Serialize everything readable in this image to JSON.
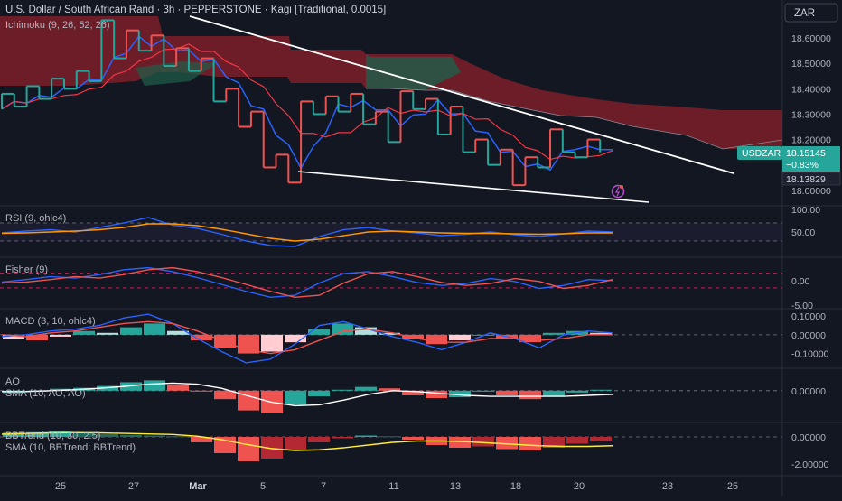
{
  "header": {
    "title": "U.S. Dollar / South African Rand · 3h · PEPPERSTONE · Kagi [Traditional, 0.0015]",
    "currency_button": "ZAR"
  },
  "colors": {
    "bg": "#131722",
    "up": "#26a69a",
    "down": "#ef5350",
    "blue": "#2962ff",
    "red_line": "#f23645",
    "orange": "#ff9800",
    "yellow": "#ffeb3b",
    "white": "#ffffff",
    "grid": "#2a2e39",
    "text": "#b2b5be"
  },
  "time_axis": {
    "labels": [
      "25",
      "27",
      "Mar",
      "5",
      "7",
      "11",
      "13",
      "18",
      "20",
      "23",
      "25"
    ]
  },
  "price_badge": {
    "symbol": "USDZAR",
    "price": "18.15145",
    "change": "−0.83%",
    "low_tag": "18.13829"
  },
  "chart_data": [
    {
      "type": "line",
      "name": "Kagi price",
      "legend": "Ichimoku (9, 26, 52, 26)",
      "yticks": [
        "18.60000",
        "18.50000",
        "18.40000",
        "18.30000",
        "18.20000",
        "18.00000"
      ],
      "ylim": [
        17.96,
        18.7
      ],
      "kagi": [
        18.32,
        18.38,
        18.33,
        18.41,
        18.36,
        18.44,
        18.4,
        18.47,
        18.43,
        18.67,
        18.52,
        18.63,
        18.55,
        18.61,
        18.49,
        18.56,
        18.47,
        18.52,
        18.35,
        18.4,
        18.25,
        18.31,
        18.09,
        18.14,
        18.03,
        18.35,
        18.3,
        18.37,
        18.31,
        18.38,
        18.26,
        18.31,
        18.19,
        18.39,
        18.32,
        18.36,
        18.22,
        18.33,
        18.15,
        18.2,
        18.1,
        18.16,
        18.02,
        18.13,
        18.09,
        18.24,
        18.15,
        18.13,
        18.2,
        18.15
      ]
    },
    {
      "type": "line",
      "name": "RSI",
      "legend": "RSI (9, ohlc4)",
      "yticks": [
        "100.00",
        "50.00"
      ],
      "ylim": [
        0,
        100
      ],
      "series": [
        {
          "name": "RSI",
          "values": [
            48,
            52,
            55,
            50,
            60,
            70,
            82,
            65,
            58,
            45,
            30,
            20,
            18,
            40,
            55,
            60,
            52,
            48,
            42,
            45,
            50,
            44,
            40,
            46,
            52,
            50
          ]
        },
        {
          "name": "RSI-based MA",
          "values": [
            47,
            48,
            50,
            52,
            55,
            60,
            68,
            68,
            64,
            56,
            46,
            36,
            30,
            34,
            42,
            50,
            52,
            50,
            48,
            47,
            47,
            46,
            45,
            46,
            48,
            48
          ]
        }
      ]
    },
    {
      "type": "line",
      "name": "Fisher",
      "legend": "Fisher (9)",
      "yticks": [
        "0.00",
        "-5.00"
      ],
      "ylim": [
        -5,
        4
      ],
      "series": [
        {
          "name": "Fisher",
          "values": [
            -0.3,
            0.2,
            0.8,
            0.5,
            1.2,
            2.2,
            2.6,
            1.8,
            0.6,
            -0.8,
            -2.2,
            -3.4,
            -3.0,
            -0.5,
            1.4,
            1.8,
            0.8,
            -0.4,
            -1.0,
            -0.6,
            0.4,
            -0.2,
            -1.6,
            -1.0,
            0.2,
            0.0
          ]
        },
        {
          "name": "Trigger",
          "values": [
            -0.5,
            -0.3,
            0.2,
            0.8,
            0.5,
            1.2,
            2.2,
            2.6,
            1.8,
            0.6,
            -0.8,
            -2.2,
            -3.4,
            -3.0,
            -0.5,
            1.4,
            1.8,
            0.8,
            -0.4,
            -1.0,
            -0.6,
            0.4,
            -0.2,
            -1.6,
            -1.0,
            0.2
          ]
        }
      ]
    },
    {
      "type": "bar",
      "name": "MACD",
      "legend": "MACD (3, 10, ohlc4)",
      "yticks": [
        "0.10000",
        "0.00000",
        "-0.10000"
      ],
      "ylim": [
        -0.16,
        0.12
      ],
      "histogram": [
        -0.02,
        -0.03,
        -0.01,
        0.02,
        0.01,
        0.04,
        0.06,
        0.02,
        -0.03,
        -0.07,
        -0.1,
        -0.09,
        -0.04,
        0.03,
        0.06,
        0.04,
        0.01,
        -0.02,
        -0.05,
        -0.03,
        0.0,
        -0.02,
        -0.04,
        0.01,
        0.02,
        0.01
      ],
      "series": [
        {
          "name": "MACD",
          "values": [
            -0.01,
            0.0,
            0.02,
            0.03,
            0.05,
            0.09,
            0.11,
            0.06,
            -0.02,
            -0.09,
            -0.15,
            -0.13,
            -0.05,
            0.05,
            0.07,
            0.03,
            -0.01,
            -0.04,
            -0.08,
            -0.04,
            0.01,
            -0.02,
            -0.07,
            0.0,
            0.02,
            0.01
          ]
        },
        {
          "name": "Signal",
          "values": [
            0.0,
            -0.01,
            0.01,
            0.02,
            0.04,
            0.06,
            0.07,
            0.06,
            0.02,
            -0.03,
            -0.08,
            -0.1,
            -0.08,
            -0.03,
            0.02,
            0.03,
            0.01,
            -0.02,
            -0.04,
            -0.04,
            -0.02,
            -0.02,
            -0.03,
            -0.02,
            0.0,
            0.0
          ]
        }
      ]
    },
    {
      "type": "bar",
      "name": "AO",
      "legend": "AO",
      "legend2": "SMA (10, AO, AO)",
      "yticks": [
        "0.00000"
      ],
      "ylim": [
        -0.6,
        0.4
      ],
      "histogram": [
        -0.05,
        -0.02,
        0.04,
        0.06,
        0.1,
        0.18,
        0.22,
        0.12,
        0.0,
        -0.18,
        -0.42,
        -0.48,
        -0.3,
        -0.12,
        0.02,
        0.08,
        0.05,
        -0.1,
        -0.16,
        -0.14,
        -0.02,
        -0.1,
        -0.18,
        -0.12,
        -0.04,
        0.02
      ],
      "series": [
        {
          "name": "SMA",
          "values": [
            -0.02,
            -0.02,
            0.0,
            0.02,
            0.05,
            0.09,
            0.14,
            0.16,
            0.14,
            0.05,
            -0.1,
            -0.24,
            -0.32,
            -0.3,
            -0.2,
            -0.08,
            0.0,
            -0.02,
            -0.06,
            -0.1,
            -0.12,
            -0.12,
            -0.12,
            -0.12,
            -0.1,
            -0.08
          ]
        }
      ]
    },
    {
      "type": "bar",
      "name": "BBTrend",
      "legend": "BBTrend (10, 30, 2.5)",
      "legend2": "SMA (10, BBTrend: BBTrend)",
      "yticks": [
        "0.00000",
        "-2.00000"
      ],
      "ylim": [
        -2.6,
        0.8
      ],
      "histogram": [
        0.3,
        0.35,
        0.4,
        0.3,
        0.2,
        0.15,
        0.1,
        0.05,
        -0.4,
        -1.2,
        -1.8,
        -1.6,
        -1.0,
        -0.4,
        -0.1,
        0.1,
        0.05,
        -0.2,
        -0.6,
        -0.8,
        -0.7,
        -0.9,
        -1.0,
        -0.8,
        -0.5,
        -0.3
      ],
      "series": [
        {
          "name": "SMA",
          "values": [
            0.2,
            0.25,
            0.3,
            0.32,
            0.3,
            0.26,
            0.22,
            0.18,
            0.05,
            -0.2,
            -0.55,
            -0.85,
            -1.0,
            -0.95,
            -0.8,
            -0.6,
            -0.4,
            -0.3,
            -0.3,
            -0.35,
            -0.45,
            -0.55,
            -0.65,
            -0.7,
            -0.7,
            -0.65
          ]
        }
      ]
    }
  ]
}
